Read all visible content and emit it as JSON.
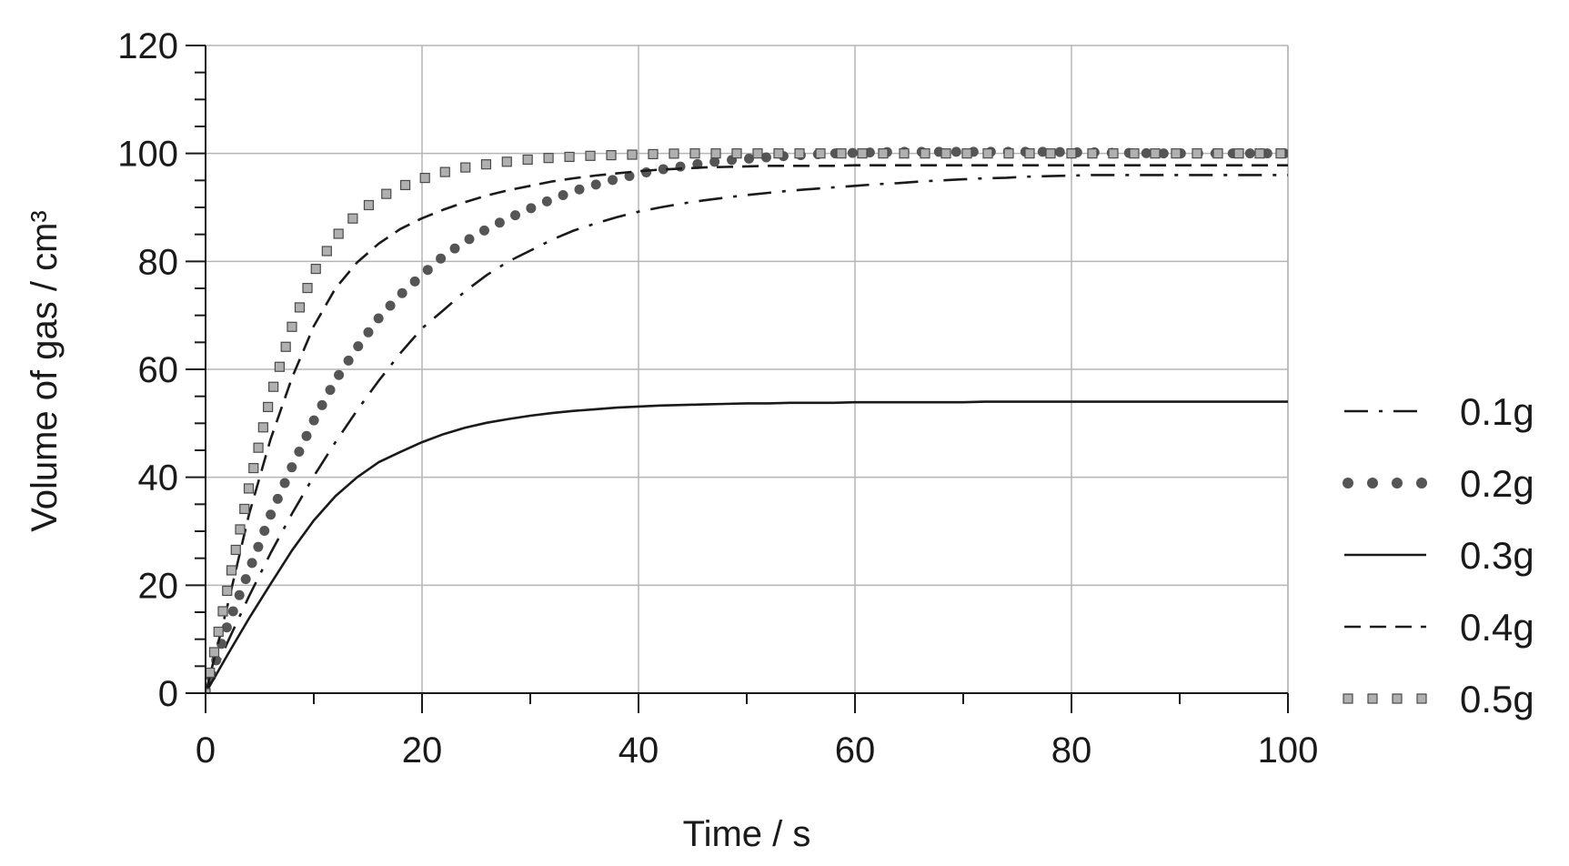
{
  "chart_data": {
    "type": "line",
    "title": "",
    "xlabel": "Time / s",
    "ylabel": "Volume of gas / cm³",
    "xlim": [
      0,
      100
    ],
    "ylim": [
      0,
      120
    ],
    "x_ticks": [
      0,
      20,
      40,
      60,
      80,
      100
    ],
    "y_ticks": [
      0,
      20,
      40,
      60,
      80,
      100,
      120
    ],
    "x_minor_step": 10,
    "y_minor_step": 5,
    "grid": true,
    "legend_position": "right",
    "x": [
      0,
      2,
      4,
      6,
      8,
      10,
      12,
      14,
      16,
      18,
      20,
      22,
      24,
      26,
      28,
      30,
      32,
      34,
      36,
      38,
      40,
      42,
      44,
      46,
      48,
      50,
      52,
      54,
      56,
      58,
      60,
      62,
      64,
      66,
      68,
      70,
      72,
      74,
      76,
      78,
      80,
      82,
      84,
      86,
      88,
      90,
      92,
      94,
      96,
      98,
      100
    ],
    "series": [
      {
        "name": "0.1g",
        "style": "dashdot",
        "color": "#1a1a1a",
        "values": [
          0,
          9.3,
          17.9,
          25.9,
          33.3,
          40.2,
          46.5,
          52.4,
          57.9,
          63.0,
          67.6,
          71.0,
          74.5,
          77.5,
          80.0,
          82.0,
          84.0,
          85.7,
          87.0,
          88.2,
          89.2,
          90.0,
          90.7,
          91.3,
          91.8,
          92.3,
          92.7,
          93.1,
          93.4,
          93.7,
          94.0,
          94.3,
          94.5,
          94.8,
          95.0,
          95.2,
          95.4,
          95.5,
          95.7,
          95.8,
          95.9,
          96.0,
          96.0,
          96.0,
          96.0,
          96.0,
          96.0,
          96.0,
          96.0,
          96.0,
          96.0
        ]
      },
      {
        "name": "0.2g",
        "style": "dots",
        "color": "#555555",
        "values": [
          0,
          12.4,
          22.6,
          33.0,
          42.0,
          50.5,
          58.0,
          64.0,
          69.5,
          73.8,
          77.5,
          81.0,
          83.7,
          86.0,
          88.0,
          89.8,
          91.5,
          93.0,
          94.2,
          95.3,
          96.2,
          97.0,
          97.6,
          98.2,
          98.7,
          99.0,
          99.3,
          99.6,
          99.8,
          100.0,
          100.1,
          100.2,
          100.3,
          100.3,
          100.3,
          100.3,
          100.3,
          100.3,
          100.3,
          100.3,
          100.2,
          100.2,
          100.1,
          100.1,
          100.0,
          100.0,
          100.0,
          100.0,
          100.0,
          100.0,
          100.0
        ]
      },
      {
        "name": "0.3g",
        "style": "solid",
        "color": "#1a1a1a",
        "values": [
          0,
          7.0,
          13.8,
          20.2,
          26.5,
          32.0,
          36.5,
          40.0,
          42.8,
          44.7,
          46.5,
          48.0,
          49.2,
          50.1,
          50.8,
          51.4,
          51.9,
          52.3,
          52.6,
          52.9,
          53.1,
          53.3,
          53.4,
          53.5,
          53.6,
          53.7,
          53.7,
          53.8,
          53.8,
          53.8,
          53.9,
          53.9,
          53.9,
          53.9,
          53.9,
          53.9,
          54.0,
          54.0,
          54.0,
          54.0,
          54.0,
          54.0,
          54.0,
          54.0,
          54.0,
          54.0,
          54.0,
          54.0,
          54.0,
          54.0,
          54.0
        ]
      },
      {
        "name": "0.4g",
        "style": "dashed",
        "color": "#1a1a1a",
        "values": [
          0,
          16.0,
          33.0,
          47.0,
          58.5,
          68.0,
          75.0,
          79.8,
          83.3,
          86.0,
          88.0,
          89.6,
          91.0,
          92.2,
          93.2,
          94.0,
          94.8,
          95.4,
          95.9,
          96.3,
          96.7,
          97.0,
          97.2,
          97.4,
          97.5,
          97.6,
          97.7,
          97.7,
          97.7,
          97.7,
          97.8,
          97.8,
          97.8,
          97.8,
          97.8,
          97.8,
          97.8,
          97.8,
          97.8,
          97.8,
          97.8,
          97.8,
          97.8,
          97.8,
          97.8,
          97.8,
          97.8,
          97.8,
          97.8,
          97.8,
          97.8
        ]
      },
      {
        "name": "0.5g",
        "style": "squares",
        "color": "#aaaaaa",
        "values": [
          0,
          19.0,
          38.0,
          55.0,
          68.0,
          78.0,
          84.5,
          88.8,
          91.8,
          93.8,
          95.3,
          96.5,
          97.4,
          98.0,
          98.5,
          98.9,
          99.2,
          99.4,
          99.6,
          99.7,
          99.8,
          99.9,
          100.0,
          100.0,
          100.0,
          100.0,
          100.0,
          100.0,
          100.0,
          100.0,
          100.0,
          100.0,
          100.0,
          100.0,
          100.0,
          100.0,
          100.0,
          100.0,
          100.0,
          100.0,
          100.0,
          100.0,
          100.0,
          100.0,
          100.0,
          100.0,
          100.0,
          100.0,
          100.0,
          100.0,
          100.0
        ]
      }
    ]
  }
}
